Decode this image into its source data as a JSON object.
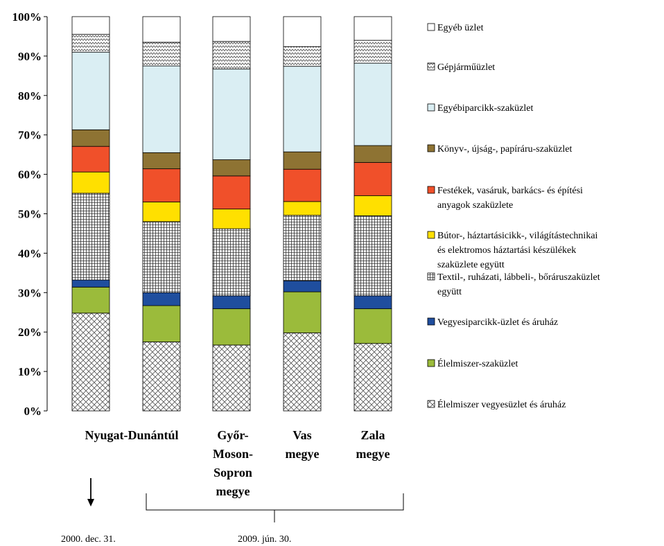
{
  "chart_data": {
    "type": "bar",
    "stacked": true,
    "ylim": [
      0,
      100
    ],
    "y_ticks": [
      "0%",
      "10%",
      "20%",
      "30%",
      "40%",
      "50%",
      "60%",
      "70%",
      "80%",
      "90%",
      "100%"
    ],
    "categories": [
      {
        "lines": [
          ""
        ]
      },
      {
        "lines": [
          "Nyugat-Dunántúl"
        ]
      },
      {
        "lines": [
          "Győr-",
          "Moson-",
          "Sopron",
          "megye"
        ]
      },
      {
        "lines": [
          "Vas",
          "megye"
        ]
      },
      {
        "lines": [
          "Zala",
          "megye"
        ]
      }
    ],
    "series": [
      {
        "name": "Élelmiszer vegyesüzlet és áruház",
        "legend_lines": [
          "Élelmiszer vegyesüzlet és áruház"
        ],
        "pattern": "crosshatch",
        "values": [
          24.8,
          17.5,
          16.7,
          19.8,
          17.1
        ]
      },
      {
        "name": "Élelmiszer-szaküzlet",
        "legend_lines": [
          "Élelmiszer-szaküzlet"
        ],
        "color": "#9BBB3B",
        "values": [
          6.6,
          9.2,
          9.2,
          10.4,
          8.8
        ]
      },
      {
        "name": "Vegyesiparcikk-üzlet és áruház",
        "legend_lines": [
          "Vegyesiparcikk-üzlet és áruház"
        ],
        "color": "#1F4E9E",
        "values": [
          1.8,
          3.3,
          3.3,
          2.8,
          3.3
        ]
      },
      {
        "name": "Textil-, ruházati, lábbeli-, bőráruszaküzlet együtt",
        "legend_lines": [
          "Textil-, ruházati, lábbeli-, bőráruszaküzlet",
          "együtt"
        ],
        "pattern": "grid",
        "values": [
          22.0,
          18.0,
          17.0,
          16.6,
          20.3
        ]
      },
      {
        "name": "Bútor-, háztartásicikk-, világítástechnikai és elektromos háztartási készülékek szaküzlete együtt",
        "legend_lines": [
          "Bútor-, háztartásicikk-, világítástechnikai",
          "és elektromos háztartási készülékek",
          "szaküzlete együtt"
        ],
        "color": "#FFE000",
        "values": [
          5.4,
          5.0,
          5.0,
          3.5,
          5.1
        ]
      },
      {
        "name": "Festékek, vasáruk, barkács- és építési anyagok szaküzlete",
        "legend_lines": [
          "Festékek, vasáruk, barkács- és építési",
          "anyagok szaküzlete"
        ],
        "color": "#F0502A",
        "values": [
          6.5,
          8.4,
          8.4,
          8.2,
          8.4
        ]
      },
      {
        "name": "Könyv-, újság-, papíráru-szaküzlet",
        "legend_lines": [
          "Könyv-, újság-, papíráru-szaküzlet"
        ],
        "color": "#8E7333",
        "values": [
          4.2,
          4.1,
          4.1,
          4.4,
          4.3
        ]
      },
      {
        "name": "Egyébiparcikk-szaküzlet",
        "legend_lines": [
          "Egyébiparcikk-szaküzlet"
        ],
        "color": "#DAEEF3",
        "values": [
          19.7,
          22.0,
          23.0,
          21.7,
          20.9
        ]
      },
      {
        "name": "Gépjárműüzlet",
        "legend_lines": [
          "Gépjárműüzlet"
        ],
        "pattern": "zigzag",
        "values": [
          4.5,
          6.0,
          7.0,
          5.0,
          5.8
        ]
      },
      {
        "name": "Egyéb üzlet",
        "legend_lines": [
          "Egyéb üzlet"
        ],
        "color": "#FFFFFF",
        "values": [
          4.5,
          6.5,
          6.3,
          7.6,
          6.0
        ]
      }
    ],
    "grid": false,
    "legend_position": "right"
  },
  "dates": {
    "first": "2000. dec. 31.",
    "second": "2009. jún. 30."
  }
}
